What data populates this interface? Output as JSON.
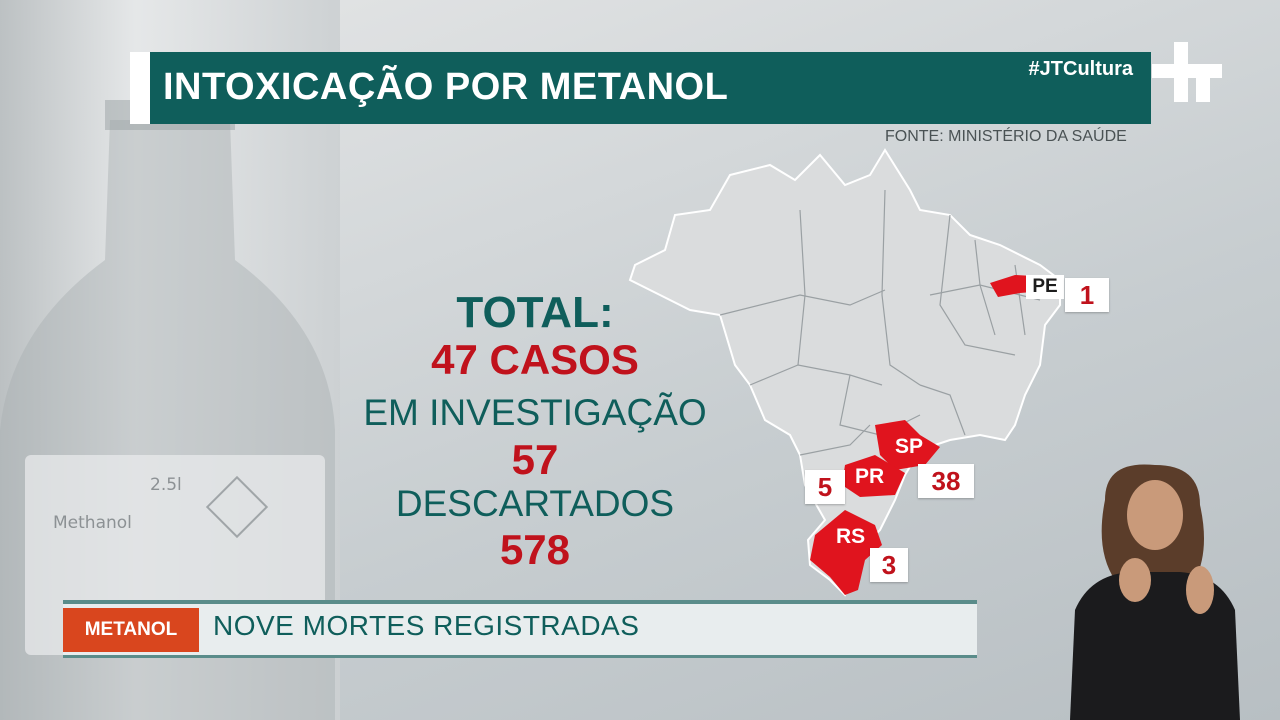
{
  "header": {
    "title": "INTOXICAÇÃO POR METANOL",
    "hashtag": "#JTCultura",
    "source": "FONTE: MINISTÉRIO DA SAÚDE"
  },
  "background": {
    "volume": "2.5l",
    "product": "Methanol"
  },
  "stats": {
    "total_label": "TOTAL:",
    "total_value": "47 CASOS",
    "investigation_label": "EM INVESTIGAÇÃO",
    "investigation_value": "57",
    "discarded_label": "DESCARTADOS",
    "discarded_value": "578"
  },
  "map": {
    "states": [
      {
        "code": "PE",
        "count": "1"
      },
      {
        "code": "SP",
        "count": "38"
      },
      {
        "code": "PR",
        "count": "5"
      },
      {
        "code": "RS",
        "count": "3"
      }
    ],
    "highlight_color": "#e0141e",
    "base_color": "#d8dadb"
  },
  "lower_third": {
    "tag": "METANOL",
    "headline": "NOVE MORTES REGISTRADAS"
  },
  "colors": {
    "teal": "#0f5e5b",
    "red": "#c0121c",
    "orange": "#d9461e"
  }
}
